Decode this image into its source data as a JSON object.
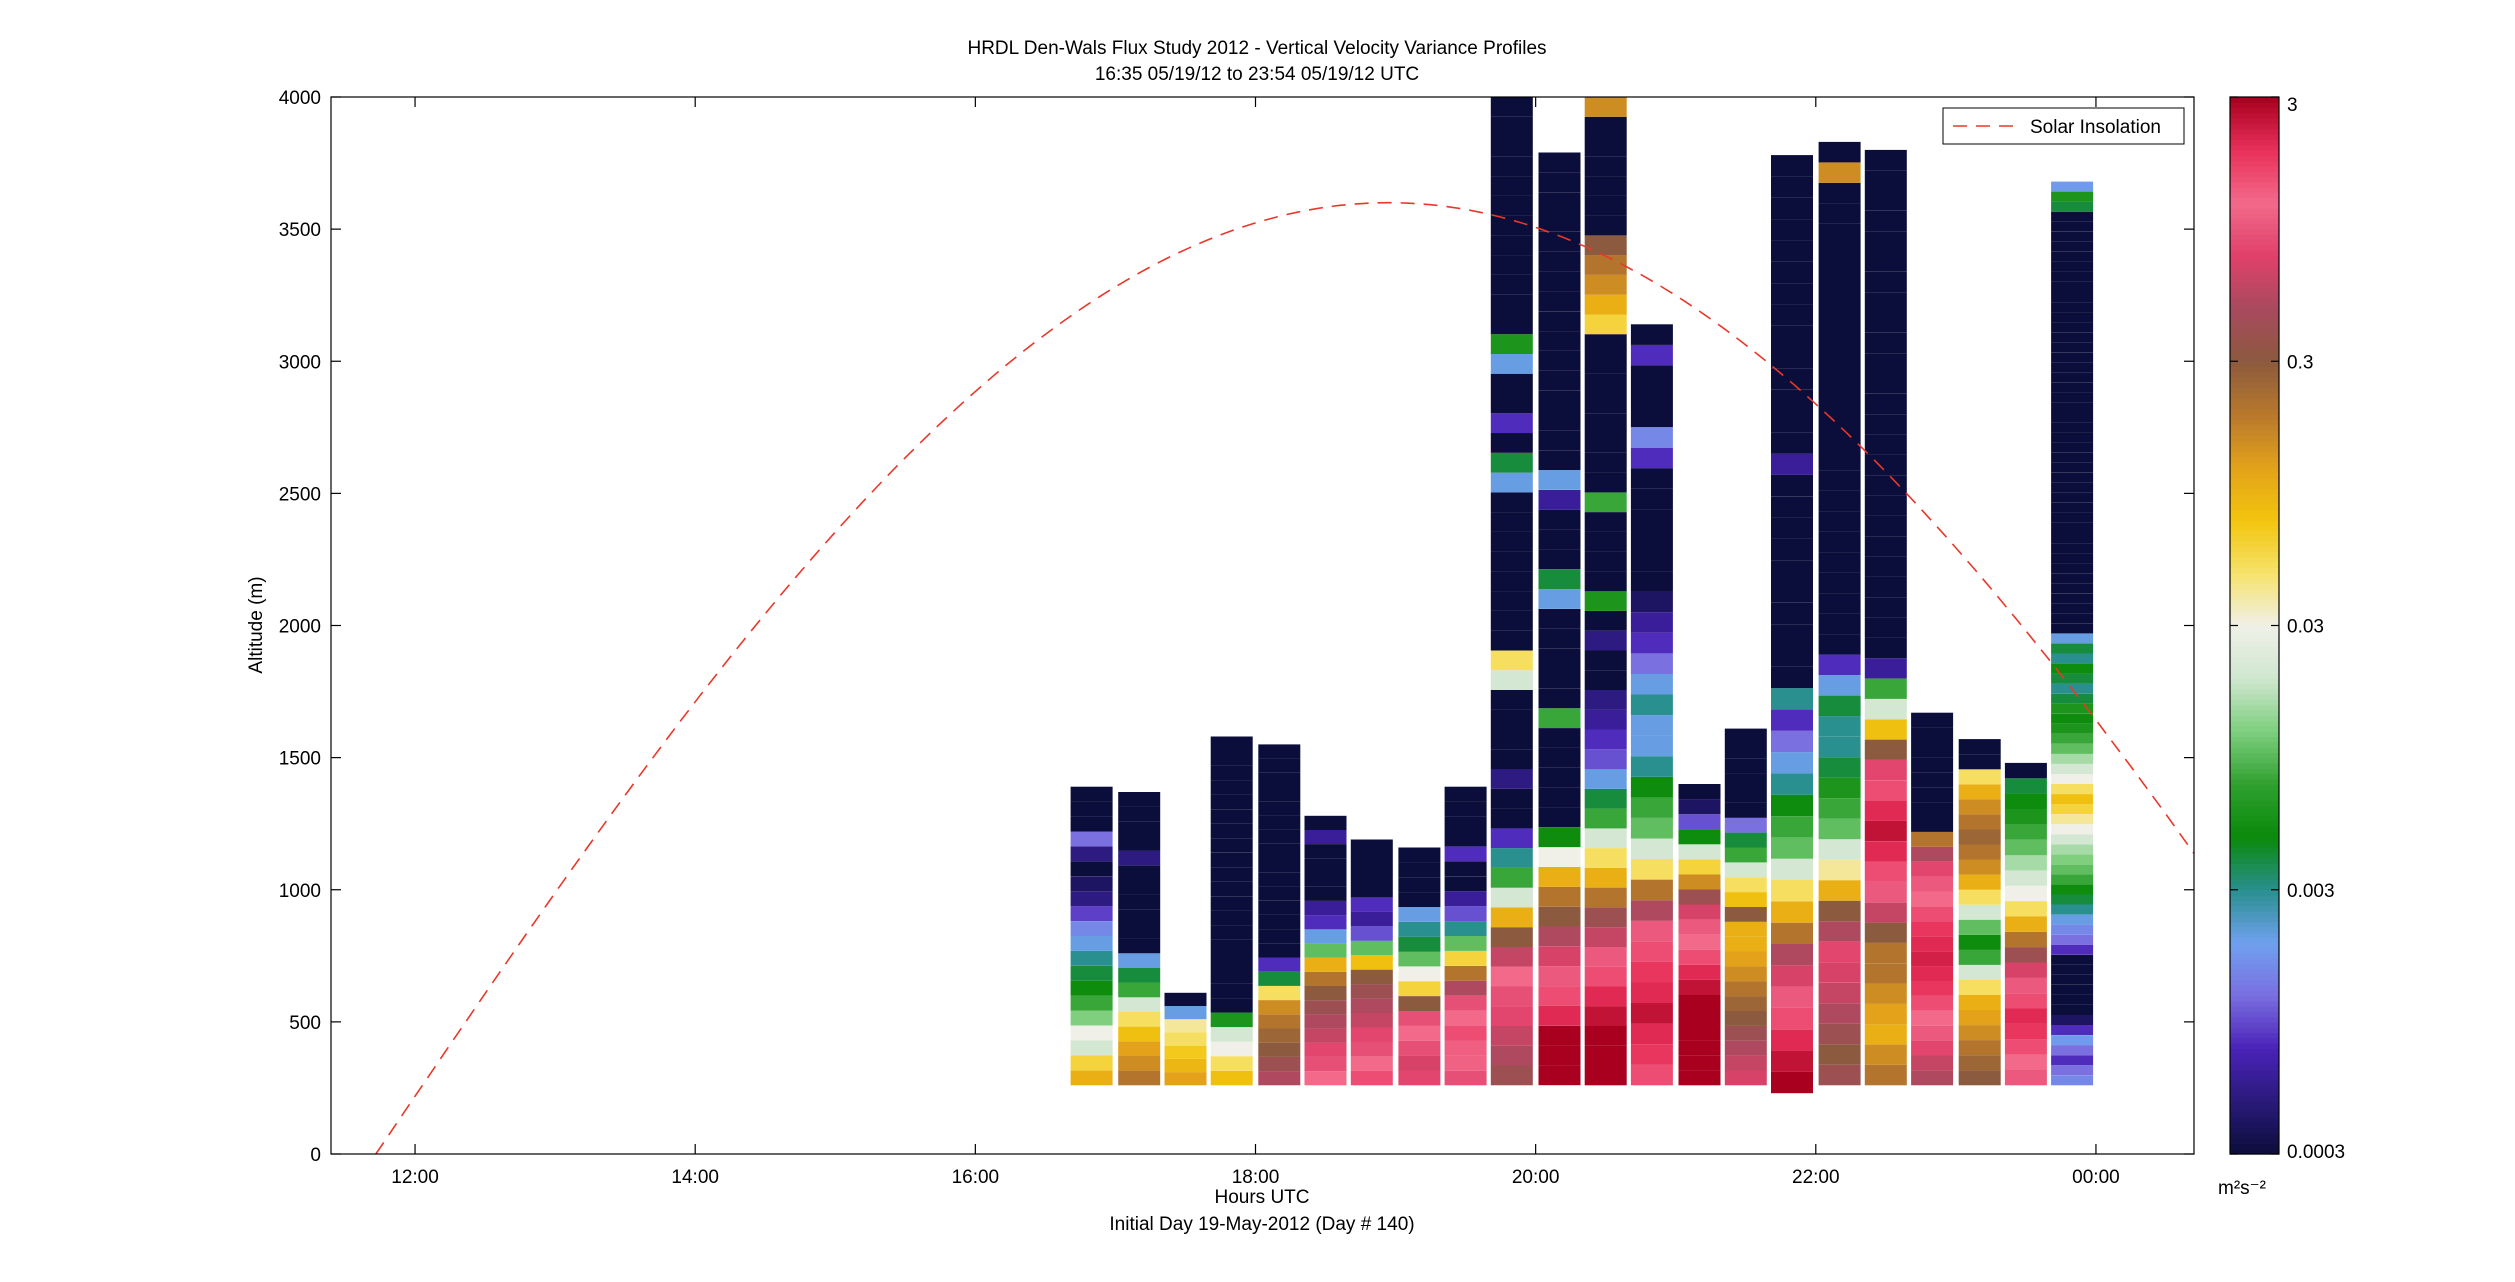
{
  "chart_data": {
    "type": "heatmap",
    "title": "HRDL Den-Wals Flux Study 2012 - Vertical Velocity Variance Profiles",
    "subtitle": "16:35 05/19/12 to 23:54 05/19/12  UTC",
    "xlabel": "Hours UTC",
    "xlabel2": "Initial Day 19-May-2012 (Day # 140)",
    "ylabel": "Altitude (m)",
    "xlim": [
      11.4,
      24.7
    ],
    "ylim": [
      0,
      4000
    ],
    "x_ticks": [
      {
        "value": 12,
        "label": "12:00"
      },
      {
        "value": 14,
        "label": "14:00"
      },
      {
        "value": 16,
        "label": "16:00"
      },
      {
        "value": 18,
        "label": "18:00"
      },
      {
        "value": 20,
        "label": "20:00"
      },
      {
        "value": 22,
        "label": "22:00"
      },
      {
        "value": 24,
        "label": "00:00"
      }
    ],
    "y_ticks": [
      {
        "value": 0,
        "label": "0"
      },
      {
        "value": 500,
        "label": "500"
      },
      {
        "value": 1000,
        "label": "1000"
      },
      {
        "value": 1500,
        "label": "1500"
      },
      {
        "value": 2000,
        "label": "2000"
      },
      {
        "value": 2500,
        "label": "2500"
      },
      {
        "value": 3000,
        "label": "3000"
      },
      {
        "value": 3500,
        "label": "3500"
      },
      {
        "value": 4000,
        "label": "4000"
      }
    ],
    "colorbar": {
      "scale": "log",
      "range": [
        0.0003,
        3
      ],
      "ticks": [
        {
          "value": 3,
          "label": "3"
        },
        {
          "value": 0.3,
          "label": "0.3"
        },
        {
          "value": 0.03,
          "label": "0.03"
        },
        {
          "value": 0.003,
          "label": "0.003"
        },
        {
          "value": 0.0003,
          "label": "0.0003"
        }
      ],
      "unit": "m²s⁻²",
      "colors": [
        "#0b0d3a",
        "#2a1a7a",
        "#4a22b8",
        "#7a6fe0",
        "#6fa0ee",
        "#2a8f8f",
        "#0a8a0a",
        "#2fa02f",
        "#7ecf7e",
        "#cfe6cf",
        "#f0f0e8",
        "#f6e26a",
        "#f2c40e",
        "#e3a21a",
        "#b8782c",
        "#8c5a3e",
        "#a84a5e",
        "#e0406a",
        "#f26a8a",
        "#e8305a",
        "#a8001e"
      ]
    },
    "legend": {
      "position": "top-right",
      "entries": [
        "Solar Insolation"
      ]
    },
    "solar_insolation": {
      "start_hour": 11.72,
      "peak_hour": 18.95,
      "end_hour": 26.18,
      "peak_altitude": 3600,
      "color": "#e8382a"
    },
    "profiles": [
      {
        "time": 16.83,
        "top": 1390,
        "bottom": 260,
        "values": [
          0.1,
          0.06,
          0.02,
          0.03,
          0.012,
          0.008,
          0.005,
          0.004,
          0.003,
          0.002,
          0.0015,
          0.0009,
          0.0005,
          0.0004,
          0.0003,
          0.0005,
          0.0012,
          0.0003,
          0.0003,
          0.0003
        ]
      },
      {
        "time": 17.17,
        "top": 1370,
        "bottom": 260,
        "values": [
          0.2,
          0.15,
          0.12,
          0.08,
          0.05,
          0.02,
          0.008,
          0.004,
          0.002,
          0.0003,
          0.0003,
          0.0003,
          0.0003,
          0.0003,
          0.0003,
          0.0005,
          0.0003,
          0.0003,
          0.0003,
          0.0003
        ]
      },
      {
        "time": 17.5,
        "top": 610,
        "bottom": 260,
        "values": [
          0.12,
          0.09,
          0.07,
          0.05,
          0.04,
          0.002,
          0.0003
        ]
      },
      {
        "time": 17.83,
        "top": 1580,
        "bottom": 260,
        "values": [
          0.08,
          0.05,
          0.03,
          0.02,
          0.006,
          0.0003,
          0.0003,
          0.0003,
          0.0003,
          0.0003,
          0.0003,
          0.0003,
          0.0003,
          0.0003,
          0.0003,
          0.0003,
          0.0003,
          0.0003,
          0.0003,
          0.0003,
          0.0003,
          0.0003,
          0.0003,
          0.0003
        ]
      },
      {
        "time": 18.17,
        "top": 1550,
        "bottom": 260,
        "values": [
          0.5,
          0.4,
          0.3,
          0.25,
          0.2,
          0.15,
          0.05,
          0.004,
          0.0008,
          0.0003,
          0.0003,
          0.0003,
          0.0003,
          0.0003,
          0.0003,
          0.0003,
          0.0003,
          0.0003,
          0.0003,
          0.0003,
          0.0003,
          0.0003,
          0.0003,
          0.0003
        ]
      },
      {
        "time": 18.5,
        "top": 1280,
        "bottom": 260,
        "values": [
          1.2,
          0.9,
          0.8,
          0.6,
          0.5,
          0.4,
          0.3,
          0.2,
          0.1,
          0.01,
          0.002,
          0.0008,
          0.0006,
          0.0003,
          0.0003,
          0.0003,
          0.0003,
          0.0006,
          0.0003
        ]
      },
      {
        "time": 18.83,
        "top": 1190,
        "bottom": 260,
        "values": [
          1.5,
          1.2,
          0.9,
          0.8,
          0.6,
          0.5,
          0.4,
          0.3,
          0.08,
          0.01,
          0.001,
          0.0006,
          0.0008,
          0.0003,
          0.0003,
          0.0003,
          0.0003
        ]
      },
      {
        "time": 19.17,
        "top": 1160,
        "bottom": 260,
        "values": [
          0.8,
          0.7,
          0.9,
          1.2,
          0.9,
          0.3,
          0.06,
          0.03,
          0.01,
          0.004,
          0.003,
          0.002,
          0.0003,
          0.0003,
          0.0003,
          0.0003
        ]
      },
      {
        "time": 19.5,
        "top": 1390,
        "bottom": 260,
        "values": [
          0.9,
          1.1,
          1.3,
          1.5,
          1.2,
          0.9,
          0.5,
          0.2,
          0.06,
          0.01,
          0.003,
          0.001,
          0.0006,
          0.0003,
          0.0003,
          0.0008,
          0.0003,
          0.0003,
          0.0003,
          0.0003
        ]
      },
      {
        "time": 19.83,
        "top": 4000,
        "bottom": 260,
        "values": [
          0.4,
          0.5,
          0.6,
          0.8,
          0.9,
          1.2,
          0.6,
          0.3,
          0.1,
          0.02,
          0.008,
          0.003,
          0.0008,
          0.0003,
          0.0003,
          0.0005,
          0.0003,
          0.0003,
          0.0003,
          0.0003,
          0.02,
          0.05,
          0.0003,
          0.0003,
          0.0003,
          0.0003,
          0.0003,
          0.0003,
          0.0003,
          0.0003,
          0.002,
          0.004,
          0.0003,
          0.0008,
          0.0003,
          0.0003,
          0.002,
          0.006,
          0.0003,
          0.0003,
          0.0003,
          0.0003,
          0.0003,
          0.0003,
          0.0003,
          0.0003,
          0.0003,
          0.0003,
          0.0003,
          0.0003
        ]
      },
      {
        "time": 20.17,
        "top": 3790,
        "bottom": 260,
        "values": [
          3,
          3,
          3,
          2,
          1.5,
          1,
          0.7,
          0.5,
          0.3,
          0.2,
          0.1,
          0.03,
          0.005,
          0.0003,
          0.0003,
          0.0003,
          0.0003,
          0.0003,
          0.008,
          0.0003,
          0.0003,
          0.0003,
          0.0003,
          0.0003,
          0.002,
          0.004,
          0.0003,
          0.0003,
          0.0003,
          0.0006,
          0.002,
          0.0003,
          0.0003,
          0.0003,
          0.0003,
          0.0003,
          0.0003,
          0.0003,
          0.0003,
          0.0003,
          0.0003,
          0.0003,
          0.0003,
          0.0003,
          0.0003,
          0.0003,
          0.0003
        ]
      },
      {
        "time": 20.5,
        "top": 4000,
        "bottom": 260,
        "values": [
          3,
          3,
          3,
          2.5,
          2,
          1.5,
          1,
          0.6,
          0.4,
          0.2,
          0.1,
          0.05,
          0.02,
          0.008,
          0.004,
          0.002,
          0.001,
          0.0008,
          0.0006,
          0.0005,
          0.0003,
          0.0003,
          0.0005,
          0.0003,
          0.006,
          0.0003,
          0.0003,
          0.0003,
          0.0003,
          0.008,
          0.0003,
          0.0003,
          0.0003,
          0.0003,
          0.0003,
          0.0003,
          0.0003,
          0.0003,
          0.06,
          0.1,
          0.15,
          0.2,
          0.3,
          0.0003,
          0.0003,
          0.0003,
          0.0003,
          0.0003,
          0.0003,
          0.15
        ]
      },
      {
        "time": 20.83,
        "top": 3140,
        "bottom": 260,
        "values": [
          1.5,
          1.8,
          2,
          2.5,
          2,
          1.8,
          1.5,
          1,
          0.5,
          0.2,
          0.05,
          0.02,
          0.01,
          0.008,
          0.005,
          0.003,
          0.002,
          0.002,
          0.003,
          0.002,
          0.0012,
          0.0008,
          0.0006,
          0.0004,
          0.0003,
          0.0003,
          0.0003,
          0.0003,
          0.0003,
          0.0003,
          0.0008,
          0.0015,
          0.0003,
          0.0003,
          0.0003,
          0.0008,
          0.0003
        ]
      },
      {
        "time": 21.17,
        "top": 1400,
        "bottom": 260,
        "values": [
          3,
          3,
          3,
          3,
          3,
          3,
          2.5,
          2,
          1.5,
          1.2,
          1,
          0.7,
          0.4,
          0.15,
          0.06,
          0.02,
          0.005,
          0.001,
          0.0004,
          0.0003
        ]
      },
      {
        "time": 21.5,
        "top": 1610,
        "bottom": 260,
        "values": [
          0.7,
          0.6,
          0.5,
          0.4,
          0.3,
          0.25,
          0.2,
          0.15,
          0.12,
          0.1,
          0.1,
          0.3,
          0.08,
          0.05,
          0.02,
          0.008,
          0.004,
          0.0012,
          0.0003,
          0.0003,
          0.0003,
          0.0003,
          0.0003,
          0.0003
        ]
      },
      {
        "time": 21.83,
        "top": 3780,
        "bottom": 230,
        "values": [
          3,
          2.5,
          2,
          1.5,
          1,
          0.7,
          0.5,
          0.2,
          0.1,
          0.05,
          0.02,
          0.01,
          0.008,
          0.005,
          0.003,
          0.002,
          0.0012,
          0.0008,
          0.003,
          0.0003,
          0.0003,
          0.0003,
          0.0003,
          0.0003,
          0.0003,
          0.0003,
          0.0003,
          0.0003,
          0.0003,
          0.0006,
          0.0003,
          0.0003,
          0.0003,
          0.0003,
          0.0003,
          0.0003,
          0.0003,
          0.0003,
          0.0003,
          0.0003,
          0.0003,
          0.0003,
          0.0003,
          0.0003
        ]
      },
      {
        "time": 22.17,
        "top": 3830,
        "bottom": 260,
        "values": [
          0.4,
          0.3,
          0.4,
          0.5,
          0.6,
          0.7,
          0.8,
          0.5,
          0.3,
          0.1,
          0.04,
          0.02,
          0.01,
          0.008,
          0.006,
          0.004,
          0.003,
          0.003,
          0.004,
          0.002,
          0.0008,
          0.0003,
          0.0003,
          0.0003,
          0.0003,
          0.0003,
          0.0003,
          0.0003,
          0.0003,
          0.0003,
          0.0003,
          0.0003,
          0.0003,
          0.0003,
          0.0003,
          0.0003,
          0.0003,
          0.0003,
          0.0003,
          0.0003,
          0.0003,
          0.0003,
          0.0003,
          0.0003,
          0.15,
          0.0003
        ]
      },
      {
        "time": 22.5,
        "top": 3800,
        "bottom": 260,
        "values": [
          0.2,
          0.15,
          0.1,
          0.12,
          0.15,
          0.2,
          0.2,
          0.3,
          0.6,
          1,
          1.5,
          2,
          2.5,
          2,
          1.5,
          0.8,
          0.3,
          0.08,
          0.02,
          0.008,
          0.0006,
          0.0003,
          0.0003,
          0.0003,
          0.0003,
          0.0003,
          0.0003,
          0.0003,
          0.0003,
          0.0003,
          0.0003,
          0.0003,
          0.0003,
          0.0003,
          0.0003,
          0.0003,
          0.0003,
          0.0003,
          0.0003,
          0.0003,
          0.0003,
          0.0003,
          0.0003,
          0.0003,
          0.0003,
          0.0003
        ]
      },
      {
        "time": 22.83,
        "top": 1670,
        "bottom": 260,
        "values": [
          0.5,
          0.6,
          0.8,
          1,
          1.2,
          1.5,
          1.8,
          2,
          2.2,
          2,
          1.8,
          1.5,
          1.2,
          1,
          0.8,
          0.5,
          0.2,
          0.0003,
          0.0003,
          0.0003,
          0.0003,
          0.0003,
          0.0003,
          0.0003,
          0.0003
        ]
      },
      {
        "time": 23.17,
        "top": 1570,
        "bottom": 260,
        "values": [
          0.3,
          0.25,
          0.2,
          0.15,
          0.12,
          0.1,
          0.05,
          0.02,
          0.008,
          0.005,
          0.01,
          0.02,
          0.05,
          0.1,
          0.15,
          0.2,
          0.25,
          0.2,
          0.15,
          0.1,
          0.05,
          0.0003,
          0.0003
        ]
      },
      {
        "time": 23.5,
        "top": 1480,
        "bottom": 260,
        "values": [
          1,
          1.2,
          1.5,
          1.8,
          2,
          1.5,
          1,
          0.7,
          0.4,
          0.2,
          0.1,
          0.05,
          0.03,
          0.02,
          0.015,
          0.01,
          0.008,
          0.006,
          0.005,
          0.004,
          0.0003
        ]
      },
      {
        "time": 23.83,
        "top": 3680,
        "bottom": 260,
        "values": [
          0.0015,
          0.0012,
          0.0008,
          0.0012,
          0.0018,
          0.0008,
          0.0004,
          0.0003,
          0.0003,
          0.0003,
          0.0003,
          0.0003,
          0.0003,
          0.0008,
          0.0012,
          0.0015,
          0.002,
          0.003,
          0.004,
          0.005,
          0.008,
          0.01,
          0.012,
          0.015,
          0.02,
          0.03,
          0.04,
          0.06,
          0.08,
          0.05,
          0.03,
          0.02,
          0.015,
          0.01,
          0.008,
          0.006,
          0.005,
          0.006,
          0.004,
          0.003,
          0.004,
          0.005,
          0.003,
          0.004,
          0.002,
          0.0003,
          0.0003,
          0.0003,
          0.0003,
          0.0003,
          0.0003,
          0.0003,
          0.0003,
          0.0003,
          0.0003,
          0.0003,
          0.0003,
          0.0003,
          0.0003,
          0.0003,
          0.0003,
          0.0003,
          0.0003,
          0.0003,
          0.0003,
          0.0003,
          0.0003,
          0.0003,
          0.0003,
          0.0003,
          0.0003,
          0.0003,
          0.0003,
          0.0003,
          0.0003,
          0.0003,
          0.0003,
          0.0003,
          0.0003,
          0.0003,
          0.0003,
          0.0003,
          0.0003,
          0.0003,
          0.0003,
          0.0003,
          0.0003,
          0.004,
          0.006,
          0.0018
        ]
      }
    ]
  }
}
